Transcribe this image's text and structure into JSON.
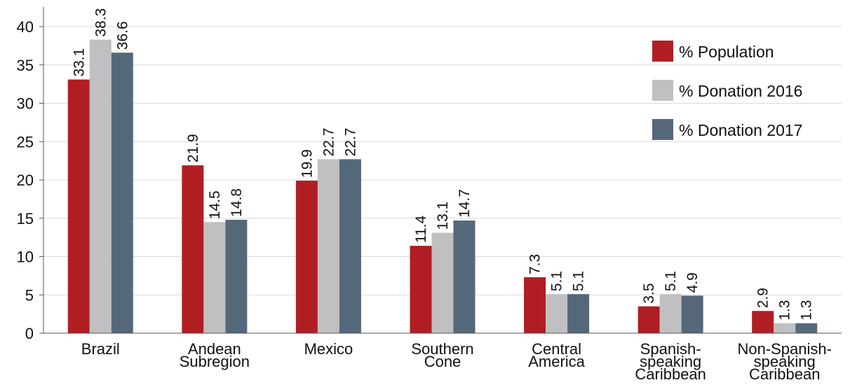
{
  "chart_data": {
    "type": "bar",
    "title": "",
    "xlabel": "",
    "ylabel": "",
    "ylim": [
      0,
      40
    ],
    "yticks": [
      0,
      5,
      10,
      15,
      20,
      25,
      30,
      35,
      40
    ],
    "grid": true,
    "legend_position": "top-right",
    "categories": [
      [
        "Brazil"
      ],
      [
        "Andean",
        "Subregion"
      ],
      [
        "Mexico"
      ],
      [
        "Southern",
        "Cone"
      ],
      [
        "Central",
        "America"
      ],
      [
        "Spanish-",
        "speaking",
        "Caribbean"
      ],
      [
        "Non-Spanish-",
        "speaking",
        "Caribbean"
      ]
    ],
    "series": [
      {
        "name": "% Population",
        "color": "#b01e23",
        "values": [
          33.1,
          21.9,
          19.9,
          11.4,
          7.3,
          3.5,
          2.9
        ]
      },
      {
        "name": "% Donation 2016",
        "color": "#c0c0c2",
        "values": [
          38.3,
          14.5,
          22.7,
          13.1,
          5.1,
          5.1,
          1.3
        ]
      },
      {
        "name": "% Donation 2017",
        "color": "#55687a",
        "values": [
          36.6,
          14.8,
          22.7,
          14.7,
          5.1,
          4.9,
          1.3
        ]
      }
    ]
  }
}
